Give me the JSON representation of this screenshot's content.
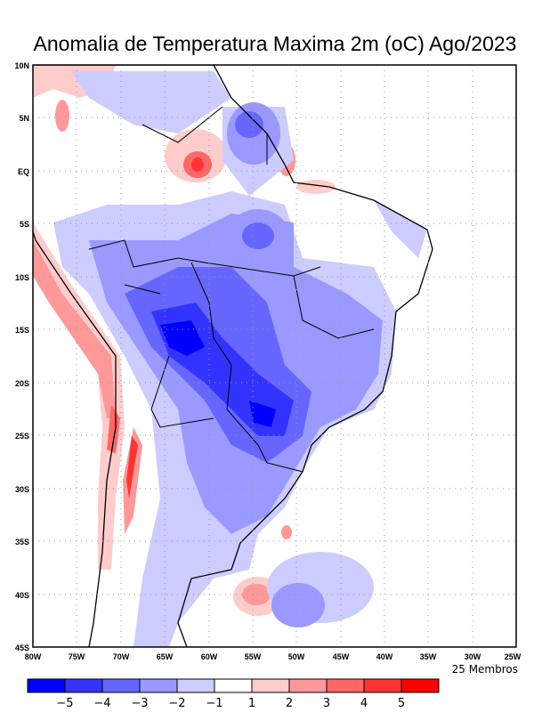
{
  "title": "Anomalia de Temperatura Maxima 2m (oC) Ago/2023",
  "members_label": "25 Membros",
  "lat_ticks": [
    "10N",
    "5N",
    "EQ",
    "5S",
    "10S",
    "15S",
    "20S",
    "25S",
    "30S",
    "35S",
    "40S",
    "45S"
  ],
  "lon_ticks": [
    "80W",
    "75W",
    "70W",
    "65W",
    "60W",
    "55W",
    "50W",
    "45W",
    "40W",
    "35W",
    "30W",
    "25W"
  ],
  "colorbar": {
    "colors": [
      "#0000ff",
      "#3333ff",
      "#6666ff",
      "#9999ff",
      "#ccccff",
      "#ffffff",
      "#ffcccc",
      "#ff9999",
      "#ff6666",
      "#ff3333",
      "#ff0000"
    ],
    "labels": [
      "-5",
      "-4",
      "-3",
      "-2",
      "-1",
      "1",
      "2",
      "3",
      "4",
      "5"
    ]
  }
}
